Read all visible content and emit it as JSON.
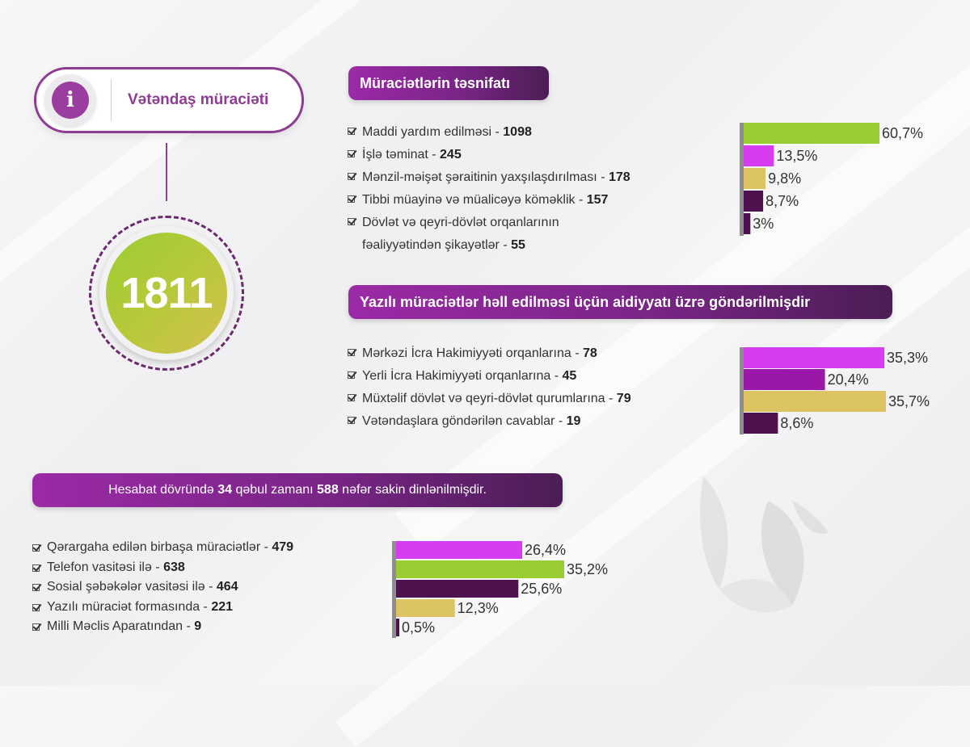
{
  "header": {
    "title": "Vətəndaş müraciəti",
    "icon": "info-icon"
  },
  "total": "1811",
  "colors": {
    "purple": "#8e3b93",
    "green": "#9acd32",
    "magenta": "#d63df0",
    "yellow": "#dcc462",
    "dark": "#4e124f",
    "violet": "#9a17a8",
    "axis": "#8e8e8e"
  },
  "section1": {
    "title": "Müraciətlərin təsnifatı",
    "items": [
      {
        "label": "Maddi yardım edilməsi - ",
        "value": "1098"
      },
      {
        "label": "İşlə təminat - ",
        "value": "245"
      },
      {
        "label": "Mənzil-məişət şəraitinin yaxşılaşdırılması -  ",
        "value": "178"
      },
      {
        "label": "Tibbi müayinə və müalicəyə köməklik -  ",
        "value": "157"
      },
      {
        "label": "Dövlət və qeyri-dövlət orqanlarının",
        "label2": "fəaliyyətindən şikayətlər - ",
        "value": "55"
      }
    ]
  },
  "section2": {
    "title": "Yazılı müraciətlər həll edilməsi üçün aidiyyatı üzrə göndərilmişdir",
    "items": [
      {
        "label": "Mərkəzi İcra Hakimiyyəti orqanlarına - ",
        "value": "78"
      },
      {
        "label": "Yerli İcra Hakimiyyəti orqanlarına - ",
        "value": "45"
      },
      {
        "label": "Müxtəlif dövlət və qeyri-dövlət qurumlarına - ",
        "value": "79"
      },
      {
        "label": "Vətəndaşlara göndərilən cavablar - ",
        "value": "19"
      }
    ]
  },
  "section3": {
    "pre": "Hesabat dövründə ",
    "n1": "34",
    "mid": " qəbul zamanı ",
    "n2": "588",
    "post": " nəfər sakin dinlənilmişdir.",
    "items": [
      {
        "label": "Qərargaha edilən birbaşa müraciətlər - ",
        "value": "479"
      },
      {
        "label": "Telefon vasitəsi ilə - ",
        "value": "638"
      },
      {
        "label": "Sosial şəbəkələr vasitəsi ilə - ",
        "value": "464"
      },
      {
        "label": "Yazılı müraciət formasında - ",
        "value": "221"
      },
      {
        "label": "Milli Məclis Aparatından - ",
        "value": "9"
      }
    ]
  },
  "chart_data": [
    {
      "type": "bar",
      "orientation": "horizontal",
      "values": [
        60.7,
        13.5,
        9.8,
        8.7,
        3
      ],
      "labels": [
        "60,7%",
        "13,5%",
        "9,8%",
        "8,7%",
        "3%"
      ],
      "colors": [
        "#9acd32",
        "#d63df0",
        "#dcc462",
        "#4e124f",
        "#4e124f"
      ],
      "xlim": [
        0,
        60.7
      ]
    },
    {
      "type": "bar",
      "orientation": "horizontal",
      "values": [
        35.3,
        20.4,
        35.7,
        8.6
      ],
      "labels": [
        "35,3%",
        "20,4%",
        "35,7%",
        "8,6%"
      ],
      "colors": [
        "#d63df0",
        "#9a17a8",
        "#dcc462",
        "#4e124f"
      ],
      "xlim": [
        0,
        35.7
      ]
    },
    {
      "type": "bar",
      "orientation": "horizontal",
      "values": [
        26.4,
        35.2,
        25.6,
        12.3,
        0.5
      ],
      "labels": [
        "26,4%",
        "35,2%",
        "25,6%",
        "12,3%",
        "0,5%"
      ],
      "colors": [
        "#d63df0",
        "#9acd32",
        "#4e124f",
        "#dcc462",
        "#4e124f"
      ],
      "xlim": [
        0,
        35.2
      ]
    }
  ]
}
